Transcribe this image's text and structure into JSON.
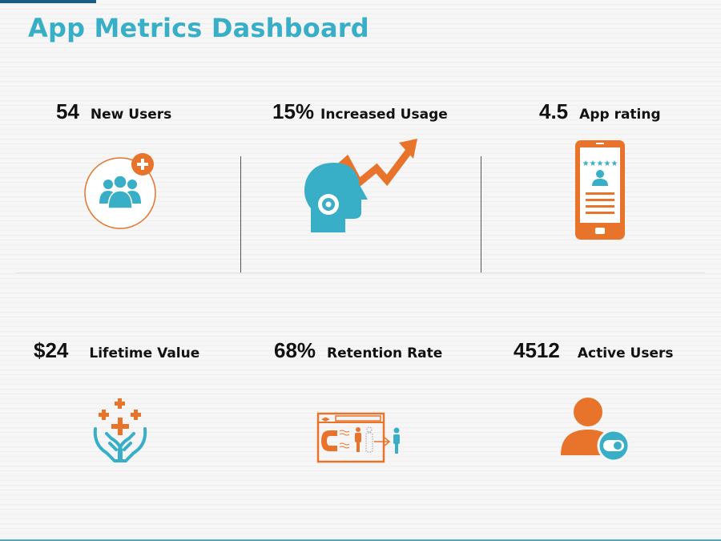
{
  "header": {
    "title": "App Metrics Dashboard"
  },
  "colors": {
    "accent_blue": "#38aec7",
    "accent_orange": "#e8732a",
    "bar_blue": "#1c5d86"
  },
  "metrics": [
    {
      "value": "54",
      "label": "New Users",
      "icon": "users-add-icon"
    },
    {
      "value": "15%",
      "label": "Increased Usage",
      "icon": "head-gear-growth-icon"
    },
    {
      "value": "4.5",
      "label": "App rating",
      "icon": "phone-rating-icon"
    },
    {
      "value": "$24",
      "label": "Lifetime Value",
      "icon": "hands-plus-icon"
    },
    {
      "value": "68%",
      "label": "Retention Rate",
      "icon": "magnet-retention-icon"
    },
    {
      "value": "4512",
      "label": "Active Users",
      "icon": "active-user-icon"
    }
  ]
}
